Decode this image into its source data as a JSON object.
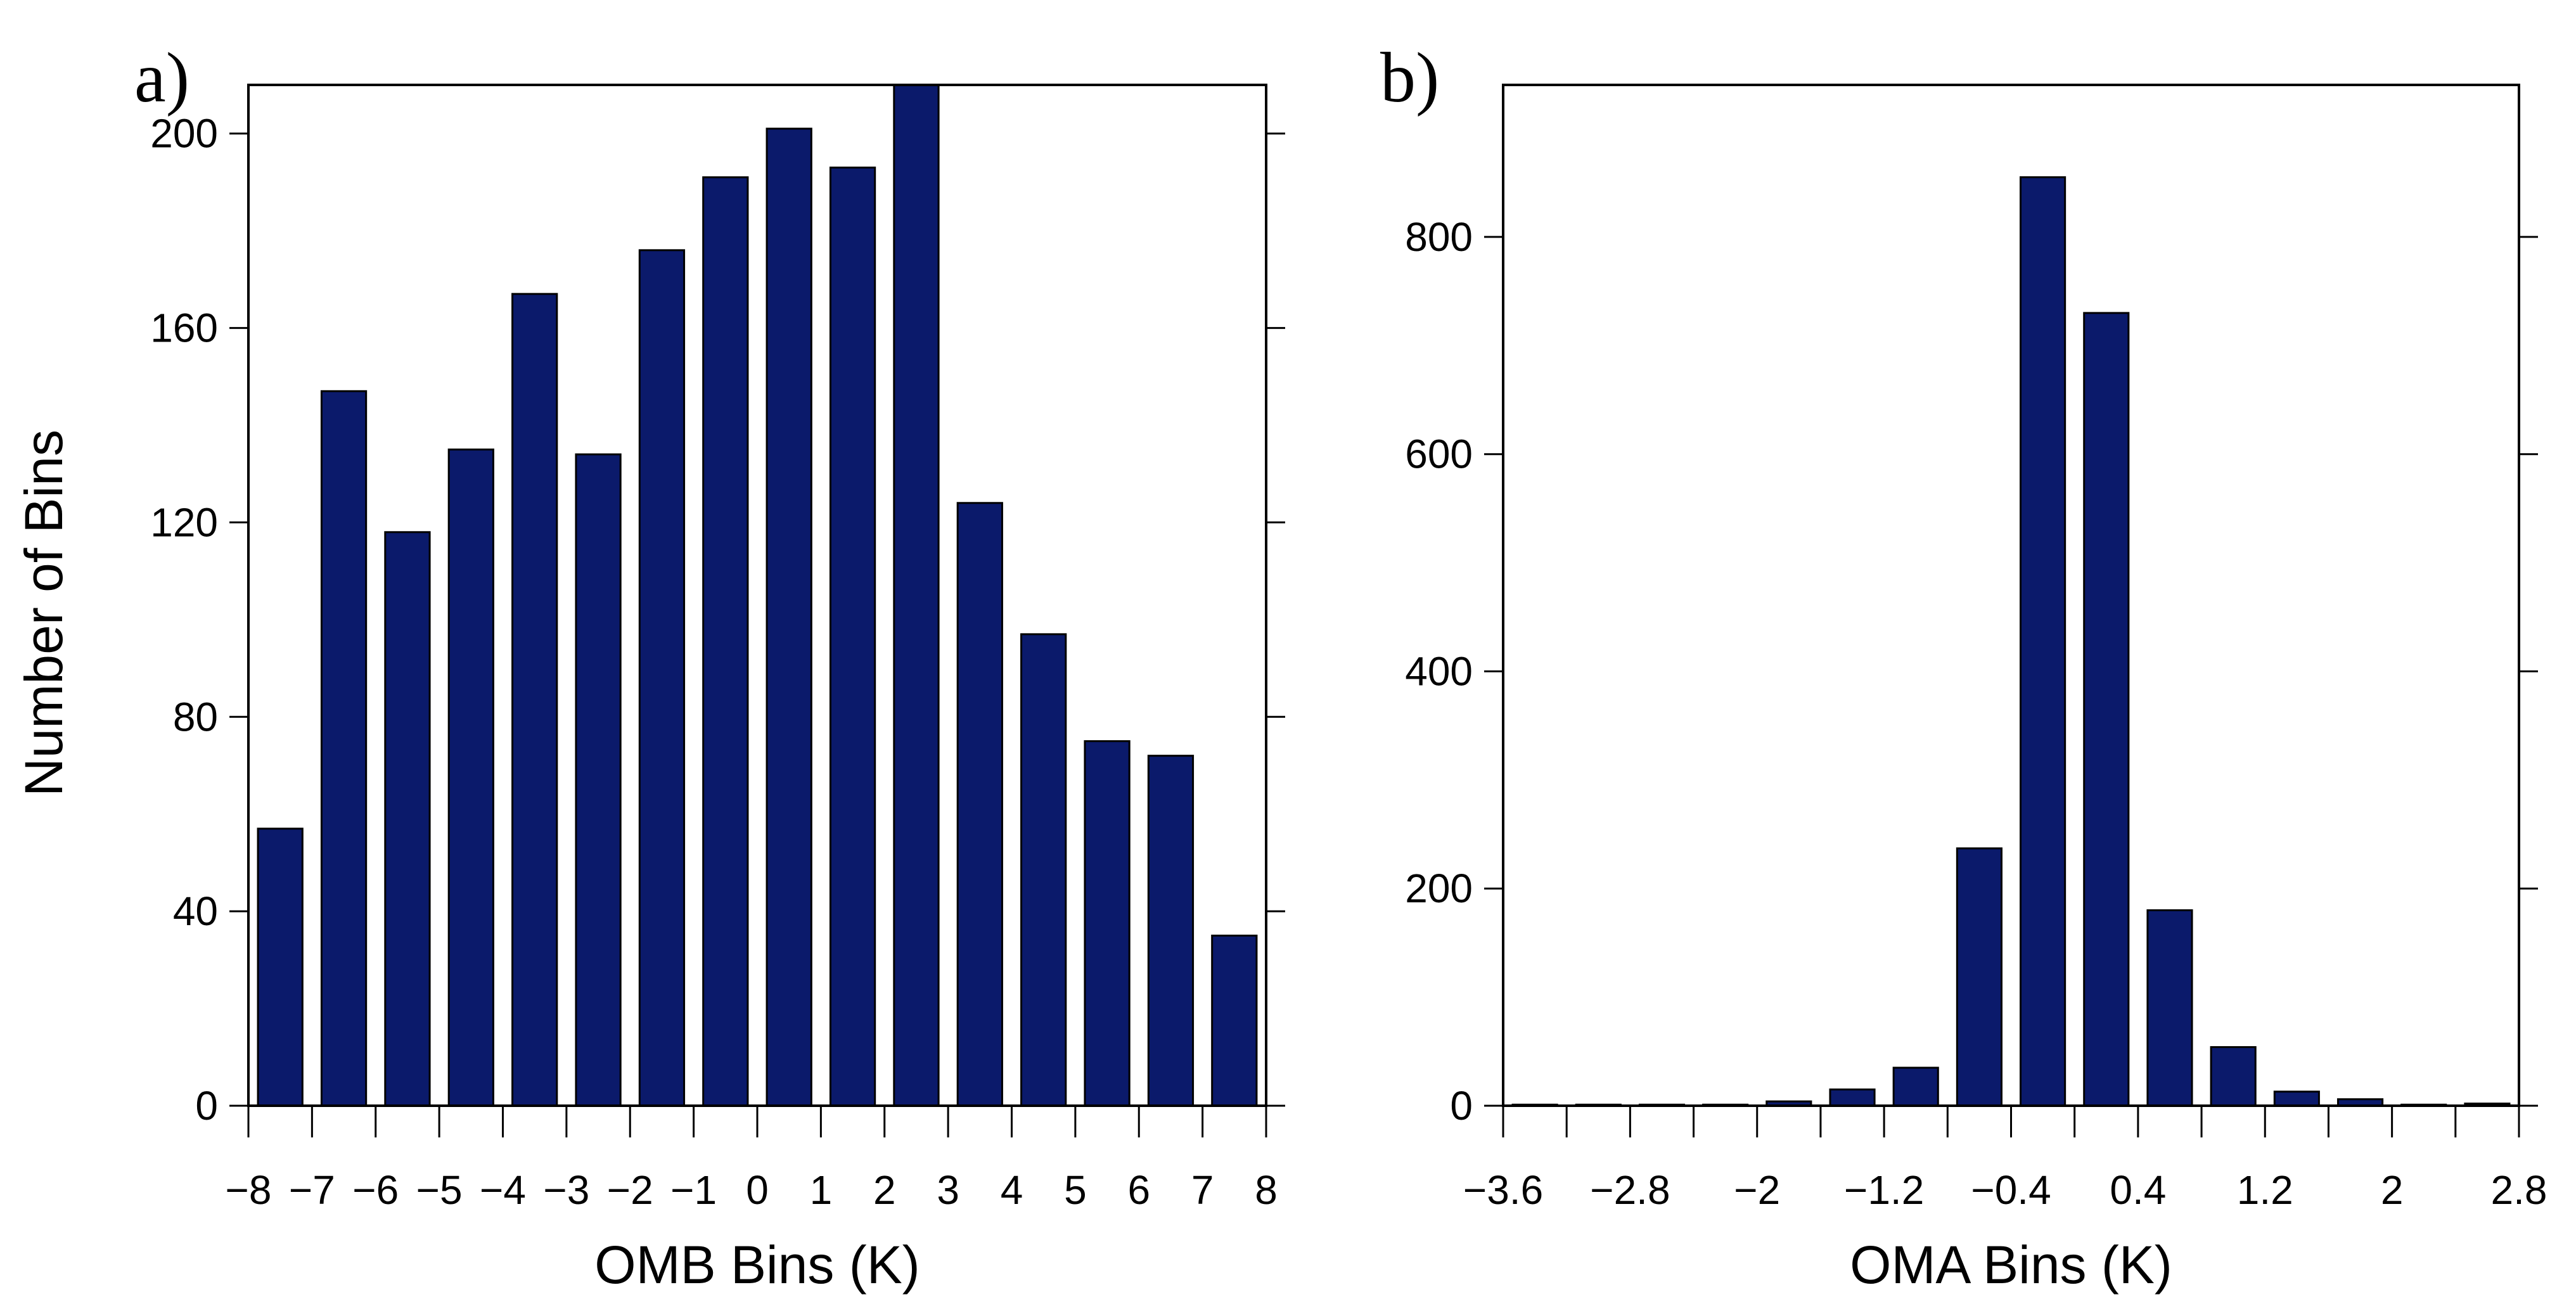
{
  "figure": {
    "ylabel_shared": "Number of Bins"
  },
  "chart_data": [
    {
      "id": "a",
      "type": "bar",
      "panel_label": "a)",
      "title": "",
      "xlabel": "OMB Bins (K)",
      "ylabel": "Number of Bins",
      "bar_color": "#0b1a6b",
      "xlim": [
        -8,
        8
      ],
      "ylim": [
        0,
        210
      ],
      "bin_width": 1,
      "bar_fill_fraction": 0.7,
      "bin_centers": [
        -7.5,
        -6.5,
        -5.5,
        -4.5,
        -3.5,
        -2.5,
        -1.5,
        -0.5,
        0.5,
        1.5,
        2.5,
        3.5,
        4.5,
        5.5,
        6.5,
        7.5
      ],
      "values": [
        57,
        147,
        118,
        135,
        167,
        134,
        176,
        191,
        201,
        193,
        210,
        124,
        97,
        75,
        72,
        35
      ],
      "xticks": [
        -8,
        -7,
        -6,
        -5,
        -4,
        -3,
        -2,
        -1,
        0,
        1,
        2,
        3,
        4,
        5,
        6,
        7,
        8
      ],
      "xtick_labels": [
        "−8",
        "−7",
        "−6",
        "−5",
        "−4",
        "−3",
        "−2",
        "−1",
        "0",
        "1",
        "2",
        "3",
        "4",
        "5",
        "6",
        "7",
        "8"
      ],
      "yticks": [
        0,
        40,
        80,
        120,
        160,
        200
      ],
      "ytick_labels": [
        "0",
        "40",
        "80",
        "120",
        "160",
        "200"
      ],
      "grid": false
    },
    {
      "id": "b",
      "type": "bar",
      "panel_label": "b)",
      "title": "",
      "xlabel": "OMA Bins (K)",
      "ylabel": "",
      "bar_color": "#0b1a6b",
      "xlim": [
        -3.6,
        2.8
      ],
      "ylim": [
        0,
        940
      ],
      "bin_width": 0.4,
      "bar_fill_fraction": 0.7,
      "bin_centers": [
        -3.4,
        -3.0,
        -2.6,
        -2.2,
        -1.8,
        -1.4,
        -1.0,
        -0.6,
        -0.2,
        0.2,
        0.6,
        1.0,
        1.4,
        1.8,
        2.2,
        2.6
      ],
      "values": [
        1,
        1,
        1,
        1,
        4,
        15,
        35,
        237,
        855,
        730,
        180,
        54,
        13,
        6,
        1,
        2
      ],
      "xticks": [
        -3.6,
        -3.2,
        -2.8,
        -2.4,
        -2.0,
        -1.6,
        -1.2,
        -0.8,
        -0.4,
        0.0,
        0.4,
        0.8,
        1.2,
        1.6,
        2.0,
        2.4,
        2.8
      ],
      "xtick_labels": [
        "−3.6",
        "",
        "−2.8",
        "",
        "−2",
        "",
        "−1.2",
        "",
        "−0.4",
        "",
        "0.4",
        "",
        "1.2",
        "",
        "2",
        "",
        "2.8"
      ],
      "yticks": [
        0,
        200,
        400,
        600,
        800
      ],
      "ytick_labels": [
        "0",
        "200",
        "400",
        "600",
        "800"
      ],
      "grid": false
    }
  ]
}
